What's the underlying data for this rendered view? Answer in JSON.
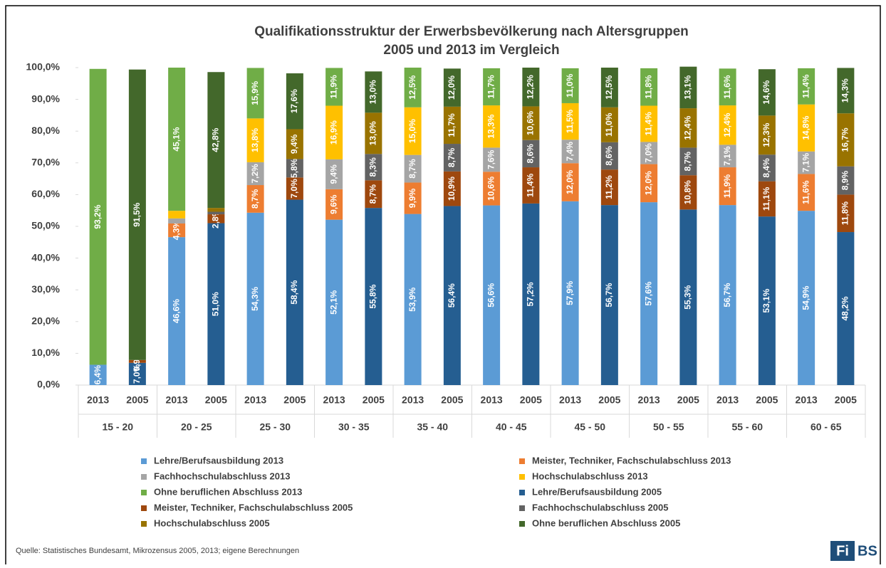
{
  "chart_data": {
    "type": "stacked_bar",
    "title": "Qualifikationsstruktur der Erwerbsbevölkerung nach Altersgruppen",
    "subtitle": "2005 und 2013 im Vergleich",
    "categories": [
      "2013",
      "2005",
      "2013",
      "2005",
      "2013",
      "2005",
      "2013",
      "2005",
      "2013",
      "2005",
      "2013",
      "2005",
      "2013",
      "2005",
      "2013",
      "2005",
      "2013",
      "2005",
      "2013",
      "2005"
    ],
    "groups": [
      "15 - 20",
      "20 - 25",
      "25 - 30",
      "30 - 35",
      "35 - 40",
      "40 - 45",
      "45 - 50",
      "50 - 55",
      "55 - 60",
      "60 - 65"
    ],
    "ylim": [
      0,
      100
    ],
    "yticks": [
      {
        "value": 0,
        "label": "0,0%"
      },
      {
        "value": 10,
        "label": "10,0%"
      },
      {
        "value": 20,
        "label": "20,0%"
      },
      {
        "value": 30,
        "label": "30,0%"
      },
      {
        "value": 40,
        "label": "40,0%"
      },
      {
        "value": 50,
        "label": "50,0%"
      },
      {
        "value": 60,
        "label": "60,0%"
      },
      {
        "value": 70,
        "label": "70,0%"
      },
      {
        "value": 80,
        "label": "80,0%"
      },
      {
        "value": 90,
        "label": "90,0%"
      },
      {
        "value": 100,
        "label": "100,0%"
      }
    ],
    "grid": false,
    "series": [
      {
        "name": "Lehre/Berufsausbildung 2013",
        "color": "#5b9bd5",
        "values": [
          6.4,
          null,
          46.6,
          null,
          54.3,
          null,
          52.1,
          null,
          53.9,
          null,
          56.6,
          null,
          57.9,
          null,
          57.6,
          null,
          56.7,
          null,
          54.9,
          null
        ],
        "value_labels": [
          "6,4%",
          null,
          "46,6%",
          null,
          "54,3%",
          null,
          "52,1%",
          null,
          "53,9%",
          null,
          "56,6%",
          null,
          "57,9%",
          null,
          "57,6%",
          null,
          "56,7%",
          null,
          "54,9%",
          null
        ]
      },
      {
        "name": "Meister, Techniker, Fachschulabschluss 2013",
        "color": "#ed7d31",
        "values": [
          null,
          null,
          4.3,
          null,
          8.7,
          null,
          9.6,
          null,
          9.9,
          null,
          10.6,
          null,
          12.0,
          null,
          12.0,
          null,
          11.9,
          null,
          11.6,
          null
        ],
        "value_labels": [
          null,
          null,
          "4,3%",
          null,
          "8,7%",
          null,
          "9,6%",
          null,
          "9,9%",
          null,
          "10,6%",
          null,
          "12,0%",
          null,
          "12,0%",
          null,
          "11,9%",
          null,
          "11,6%",
          null
        ]
      },
      {
        "name": "Fachhochschulabschluss 2013",
        "color": "#a5a5a5",
        "values": [
          null,
          null,
          1.6,
          null,
          7.2,
          null,
          9.4,
          null,
          8.7,
          null,
          7.6,
          null,
          7.4,
          null,
          7.0,
          null,
          7.1,
          null,
          7.1,
          null
        ],
        "value_labels": [
          null,
          null,
          null,
          null,
          "7,2%",
          null,
          "9,4%",
          null,
          "8,7%",
          null,
          "7,6%",
          null,
          "7,4%",
          null,
          "7,0%",
          null,
          "7,1%",
          null,
          "7,1%",
          null
        ]
      },
      {
        "name": "Hochschulabschluss 2013",
        "color": "#ffc000",
        "values": [
          null,
          null,
          2.4,
          null,
          13.8,
          null,
          16.9,
          null,
          15.0,
          null,
          13.3,
          null,
          11.5,
          null,
          11.4,
          null,
          12.4,
          null,
          14.8,
          null
        ],
        "value_labels": [
          null,
          null,
          null,
          null,
          "13,8%",
          null,
          "16,9%",
          null,
          "15,0%",
          null,
          "13,3%",
          null,
          "11,5%",
          null,
          "11,4%",
          null,
          "12,4%",
          null,
          "14,8%",
          null
        ]
      },
      {
        "name": "Ohne beruflichen Abschluss 2013",
        "color": "#70ad47",
        "values": [
          93.2,
          null,
          45.1,
          null,
          15.9,
          null,
          11.9,
          null,
          12.5,
          null,
          11.7,
          null,
          11.0,
          null,
          11.8,
          null,
          11.6,
          null,
          11.4,
          null
        ],
        "value_labels": [
          "93,2%",
          null,
          "45,1%",
          null,
          "15,9%",
          null,
          "11,9%",
          null,
          "12,5%",
          null,
          "11,7%",
          null,
          "11,0%",
          null,
          "11,8%",
          null,
          "11,6%",
          null,
          "11,4%",
          null
        ]
      },
      {
        "name": "Lehre/Berufsausbildung 2005",
        "color": "#255e91",
        "values": [
          null,
          7.0,
          null,
          51.0,
          null,
          58.4,
          null,
          55.8,
          null,
          56.4,
          null,
          57.2,
          null,
          56.7,
          null,
          55.3,
          null,
          53.1,
          null,
          48.2
        ],
        "value_labels": [
          null,
          "7,0%",
          null,
          "51,0%",
          null,
          "58,4%",
          null,
          "55,8%",
          null,
          "56,4%",
          null,
          "57,2%",
          null,
          "56,7%",
          null,
          "55,3%",
          null,
          "53,1%",
          null,
          "48,2%"
        ]
      },
      {
        "name": "Meister, Techniker, Fachschulabschluss 2005",
        "color": "#9e480e",
        "values": [
          null,
          0.9,
          null,
          2.8,
          null,
          7.0,
          null,
          8.7,
          null,
          10.9,
          null,
          11.4,
          null,
          11.2,
          null,
          10.8,
          null,
          11.1,
          null,
          11.8
        ],
        "value_labels": [
          null,
          "0,9%",
          null,
          "2,8%",
          null,
          "7,0%",
          null,
          "8,7%",
          null,
          "10,9%",
          null,
          "11,4%",
          null,
          "11,2%",
          null,
          "10,8%",
          null,
          "11,1%",
          null,
          "11,8%"
        ]
      },
      {
        "name": "Fachhochschulabschluss 2005",
        "color": "#636363",
        "values": [
          null,
          null,
          null,
          0.8,
          null,
          5.8,
          null,
          8.3,
          null,
          8.7,
          null,
          8.6,
          null,
          8.6,
          null,
          8.7,
          null,
          8.4,
          null,
          8.9
        ],
        "value_labels": [
          null,
          null,
          null,
          null,
          null,
          "5,8%",
          null,
          "8,3%",
          null,
          "8,7%",
          null,
          "8,6%",
          null,
          "8,6%",
          null,
          "8,7%",
          null,
          "8,4%",
          null,
          "8,9%"
        ]
      },
      {
        "name": "Hochschulabschluss 2005",
        "color": "#997300",
        "values": [
          null,
          null,
          null,
          1.2,
          null,
          9.4,
          null,
          13.0,
          null,
          11.7,
          null,
          10.6,
          null,
          11.0,
          null,
          12.4,
          null,
          12.3,
          null,
          16.7
        ],
        "value_labels": [
          null,
          null,
          null,
          null,
          null,
          "9,4%",
          null,
          "13,0%",
          null,
          "11,7%",
          null,
          "10,6%",
          null,
          "11,0%",
          null,
          "12,4%",
          null,
          "12,3%",
          null,
          "16,7%"
        ]
      },
      {
        "name": "Ohne beruflichen Abschluss 2005",
        "color": "#43682b",
        "values": [
          null,
          91.5,
          null,
          42.8,
          null,
          17.6,
          null,
          13.0,
          null,
          12.0,
          null,
          12.2,
          null,
          12.5,
          null,
          13.1,
          null,
          14.6,
          null,
          14.3
        ],
        "value_labels": [
          null,
          "91,5%",
          null,
          "42,8%",
          null,
          "17,6%",
          null,
          "13,0%",
          null,
          "12,0%",
          null,
          "12,2%",
          null,
          "12,5%",
          null,
          "13,1%",
          null,
          "14,6%",
          null,
          "14,3%"
        ]
      }
    ],
    "source": "Quelle: Statistisches Bundesamt, Mikrozensus 2005, 2013; eigene Berechnungen",
    "logo": [
      "Fi",
      "BS"
    ]
  }
}
